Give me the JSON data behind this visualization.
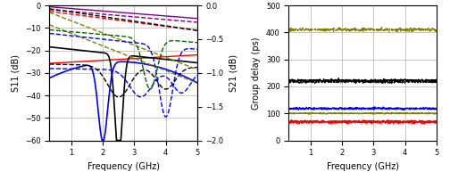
{
  "left_plot": {
    "xlabel": "Frequency (GHz)",
    "ylabel_left": "S11 (dB)",
    "ylabel_right": "S21 (dB)",
    "xlim": [
      0.3,
      5.0
    ],
    "ylim_left": [
      -60,
      0
    ],
    "ylim_right": [
      -2.0,
      0.0
    ],
    "yticks_left": [
      0,
      -10,
      -20,
      -30,
      -40,
      -50,
      -60
    ],
    "yticks_right": [
      0.0,
      -0.5,
      -1.0,
      -1.5,
      -2.0
    ],
    "xticks": [
      1,
      2,
      3,
      4,
      5
    ]
  },
  "right_plot": {
    "xlabel": "Frequency (GHz)",
    "ylabel": "Group delay (ps)",
    "xlim": [
      0.3,
      5.0
    ],
    "ylim": [
      0,
      500
    ],
    "yticks": [
      0,
      100,
      200,
      300,
      400,
      500
    ],
    "xticks": [
      1,
      2,
      3,
      4,
      5
    ],
    "lines": [
      {
        "color": "#808000",
        "linestyle": "dashed",
        "value": 410,
        "noise_seed": 1,
        "noise_amp": 3
      },
      {
        "color": "#000000",
        "linestyle": "solid",
        "value": 222,
        "noise_seed": 2,
        "noise_amp": 2
      },
      {
        "color": "#000000",
        "linestyle": "dashed",
        "value": 217,
        "noise_seed": 3,
        "noise_amp": 2
      },
      {
        "color": "#0000ff",
        "linestyle": "solid",
        "value": 118,
        "noise_seed": 4,
        "noise_amp": 2
      },
      {
        "color": "#808000",
        "linestyle": "solid",
        "value": 100,
        "noise_seed": 5,
        "noise_amp": 1
      },
      {
        "color": "#ff0000",
        "linestyle": "solid",
        "value": 70,
        "noise_seed": 6,
        "noise_amp": 2
      },
      {
        "color": "#ff0000",
        "linestyle": "dashed",
        "value": 67,
        "noise_seed": 7,
        "noise_amp": 2
      }
    ]
  }
}
